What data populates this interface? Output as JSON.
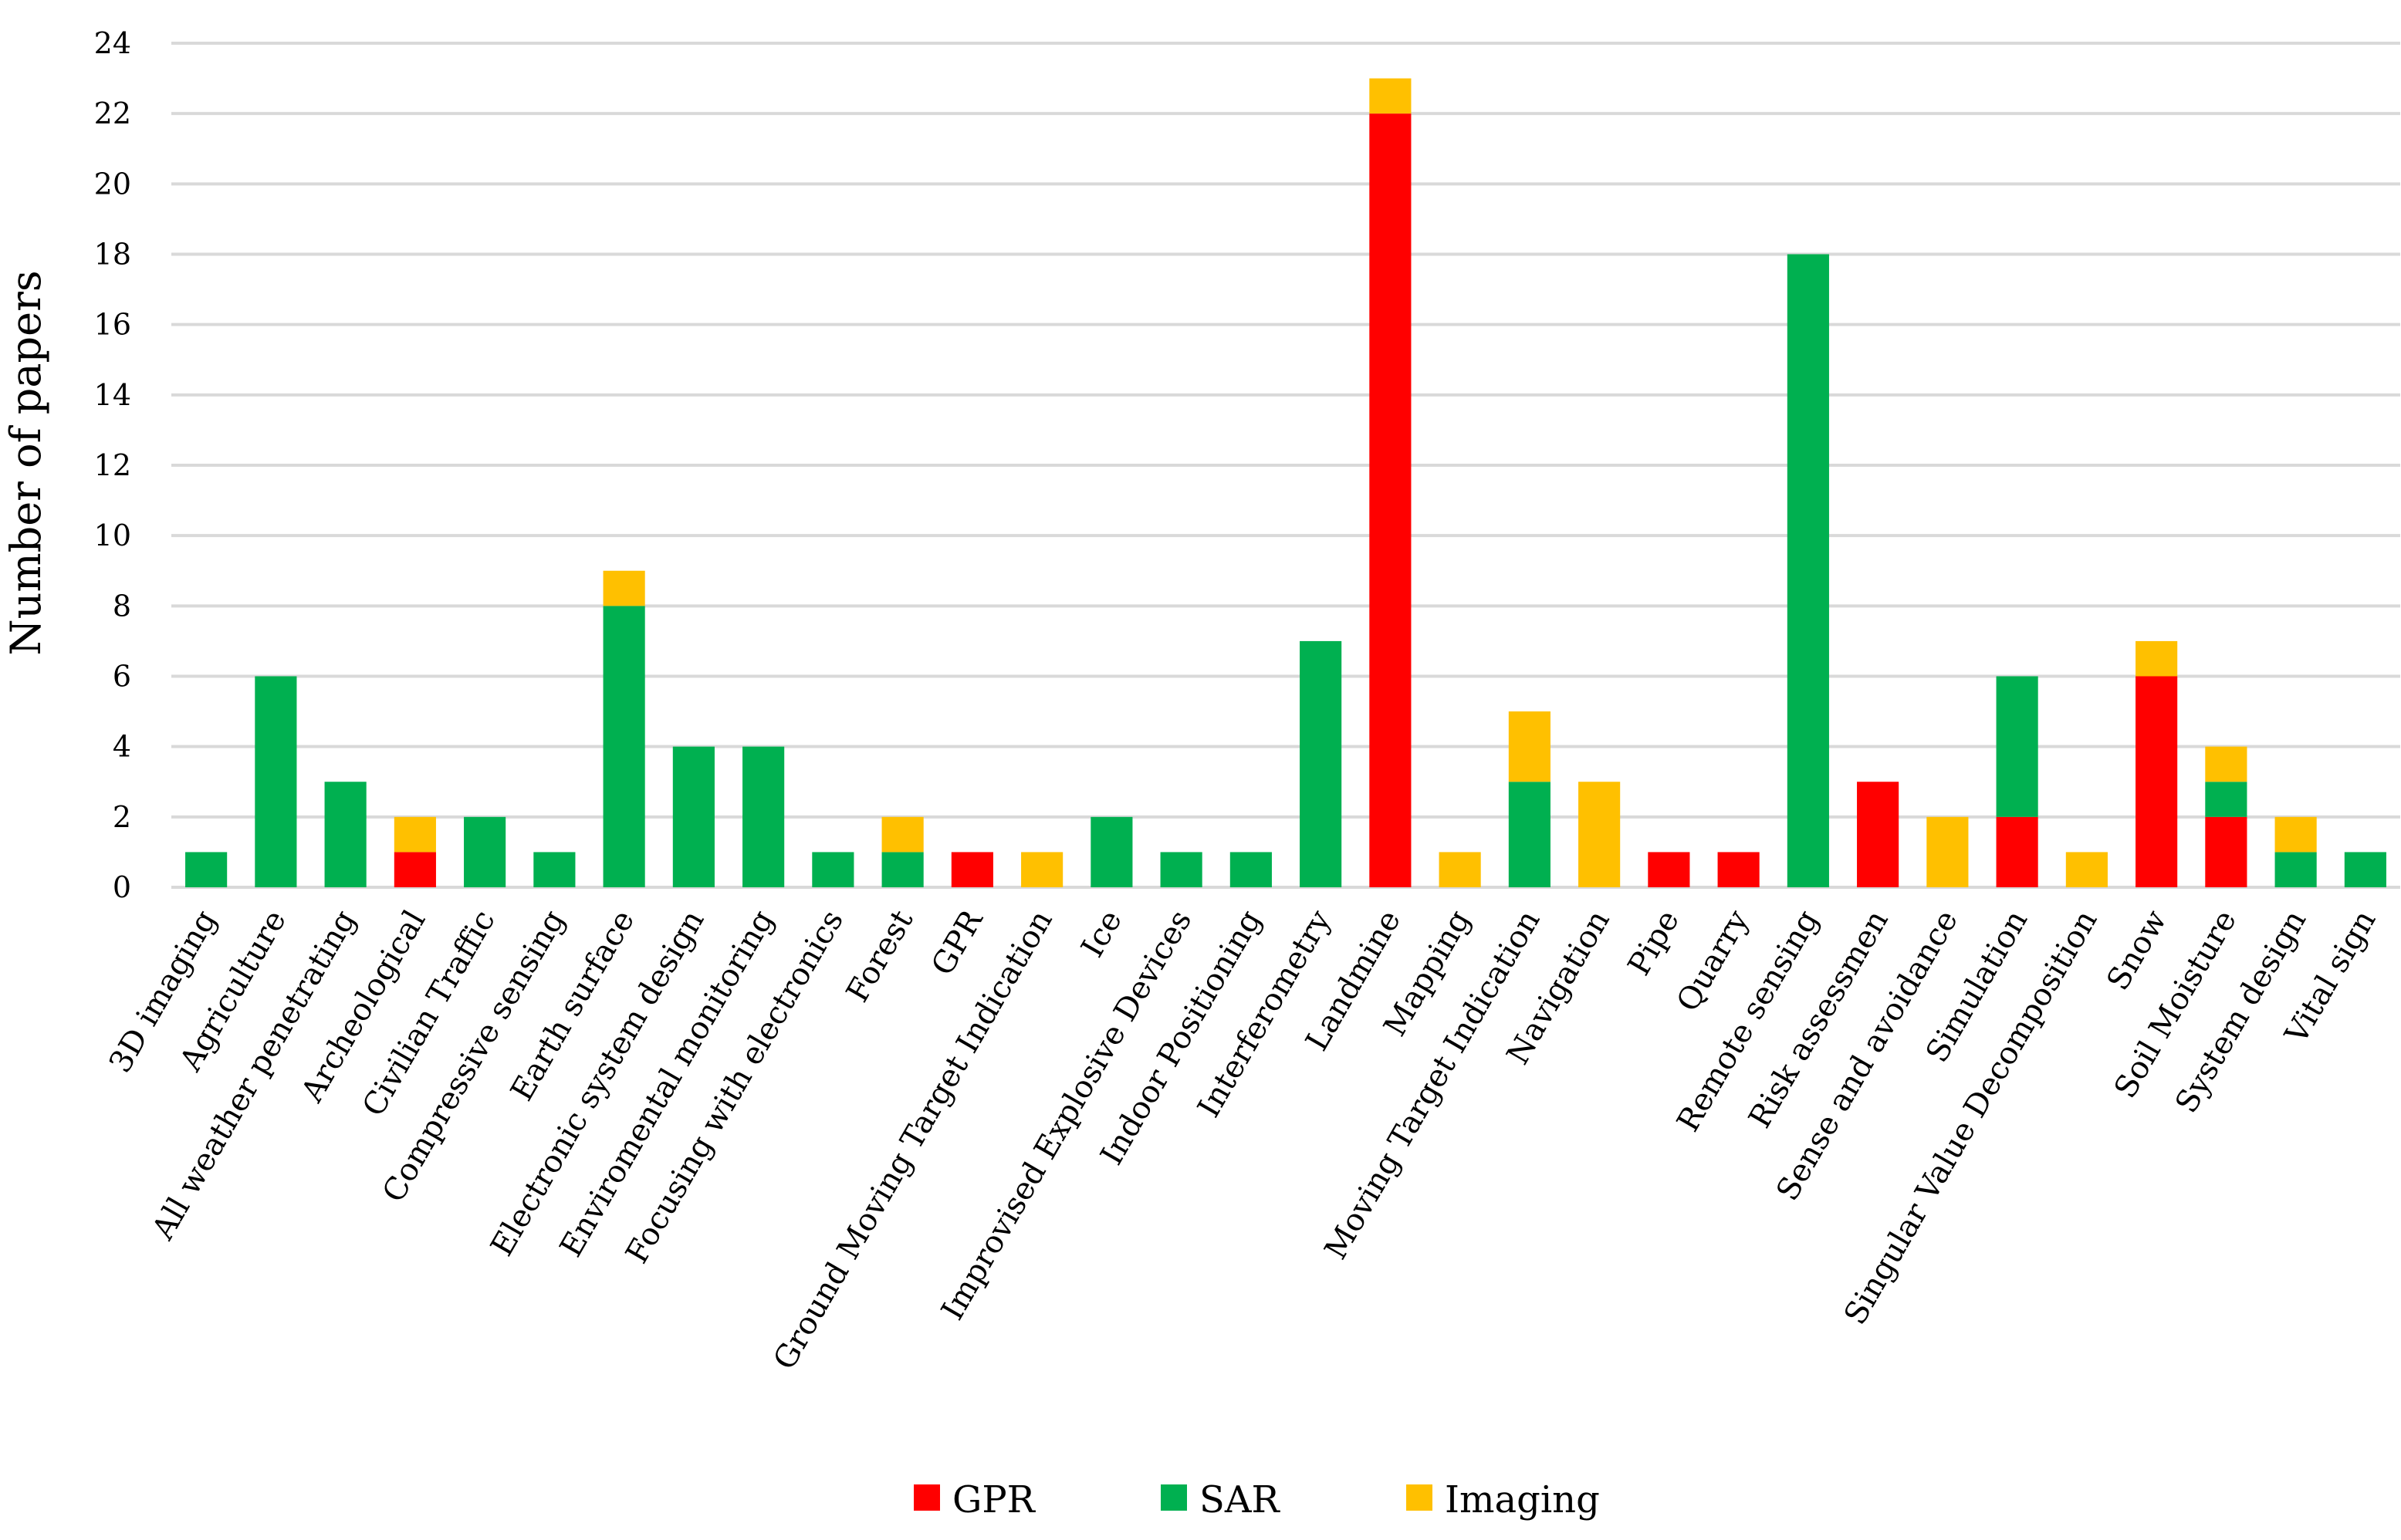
{
  "chart_data": {
    "type": "bar",
    "stacked": true,
    "title": "",
    "xlabel": "",
    "ylabel": "Number of papers",
    "ylim": [
      0,
      24
    ],
    "yticks": [
      0,
      2,
      4,
      6,
      8,
      10,
      12,
      14,
      16,
      18,
      20,
      22,
      24
    ],
    "grid": true,
    "legend_position": "bottom-center",
    "categories": [
      "3D imaging",
      "Agriculture",
      "All weather penetrating",
      "Archeological",
      "Civilian Traffic",
      "Compressive sensing",
      "Earth surface",
      "Electronic system design",
      "Enviromental monitoring",
      "Focusing with electronics",
      "Forest",
      "GPR",
      "Ground Moving Target Indication",
      "Ice",
      "Improvised Explosive Devices",
      "Indoor Positioning",
      "Interferometry",
      "Landmine",
      "Mapping",
      "Moving Target Indication",
      "Navigation",
      "Pipe",
      "Quarry",
      "Remote sensing",
      "Risk assessmen",
      "Sense and avoidance",
      "Simulation",
      "Singular Value Decomposition",
      "Snow",
      "Soil Moisture",
      "System design",
      "Vital sign"
    ],
    "series": [
      {
        "name": "GPR",
        "color": "#ff0000",
        "values": [
          0,
          0,
          0,
          1,
          0,
          0,
          0,
          0,
          0,
          0,
          0,
          1,
          0,
          0,
          0,
          0,
          0,
          22,
          0,
          0,
          0,
          1,
          1,
          0,
          3,
          0,
          2,
          0,
          6,
          2,
          0,
          0
        ]
      },
      {
        "name": "SAR",
        "color": "#00b050",
        "values": [
          1,
          6,
          3,
          0,
          2,
          1,
          8,
          4,
          4,
          1,
          1,
          0,
          0,
          2,
          1,
          1,
          7,
          0,
          0,
          3,
          0,
          0,
          0,
          18,
          0,
          0,
          4,
          0,
          0,
          1,
          1,
          1
        ]
      },
      {
        "name": "Imaging",
        "color": "#ffc000",
        "values": [
          0,
          0,
          0,
          1,
          0,
          0,
          1,
          0,
          0,
          0,
          1,
          0,
          1,
          0,
          0,
          0,
          0,
          1,
          1,
          2,
          3,
          0,
          0,
          0,
          0,
          2,
          0,
          1,
          1,
          1,
          1,
          0
        ]
      }
    ]
  }
}
